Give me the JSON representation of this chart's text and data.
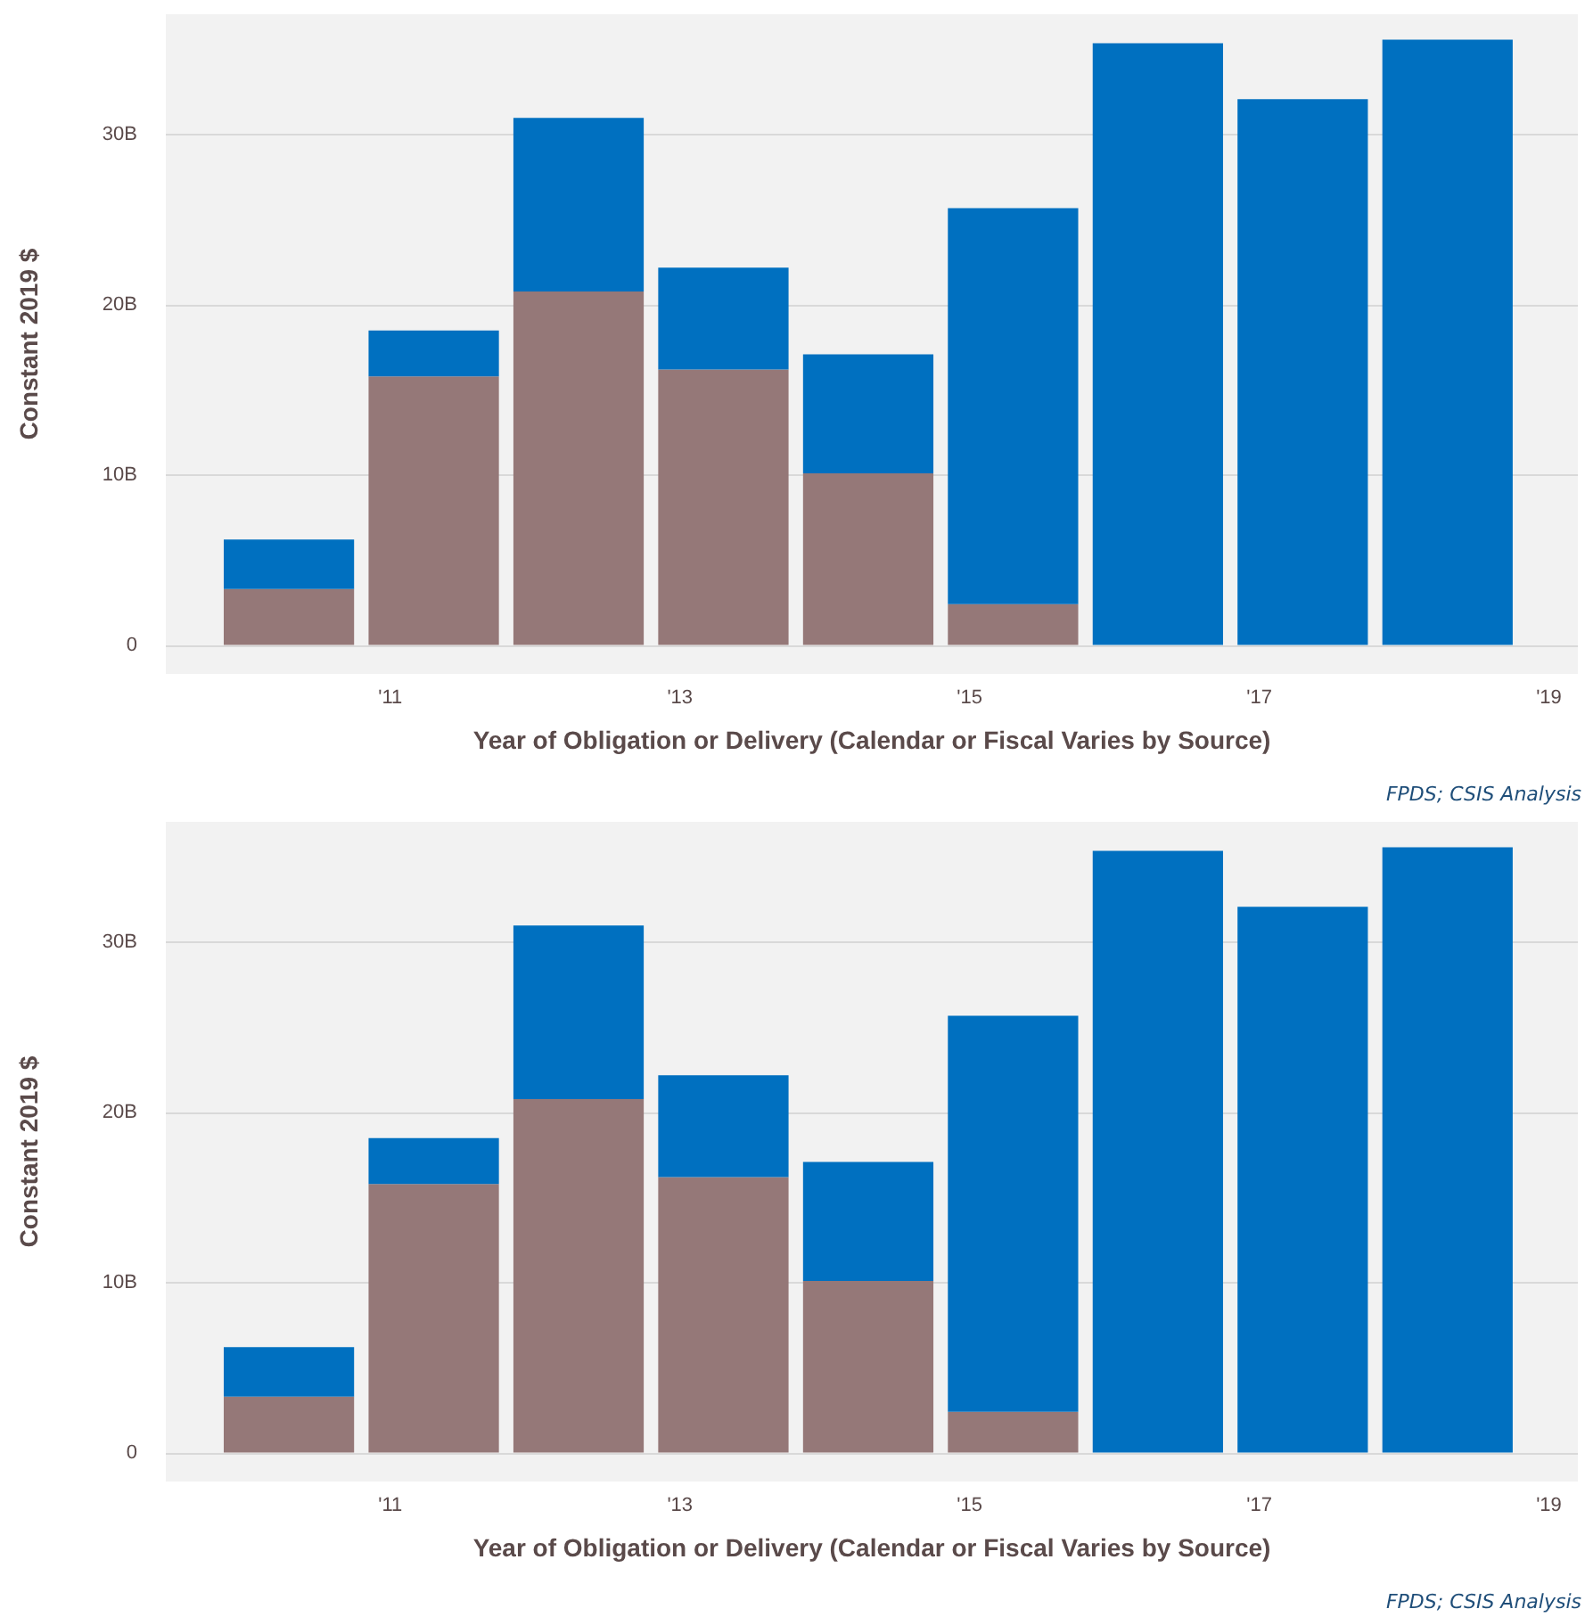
{
  "chart_data": [
    {
      "type": "bar",
      "stacked": true,
      "xlabel": "Year of Obligation or Delivery (Calendar or Fiscal Varies by Source)",
      "ylabel": "Constant 2019 $",
      "x": [
        2010.3,
        2011.3,
        2012.3,
        2013.3,
        2014.3,
        2015.3,
        2016.3,
        2017.3,
        2018.3
      ],
      "series": [
        {
          "color": "#957878",
          "values": [
            3.3,
            15.8,
            20.8,
            16.2,
            10.1,
            2.4,
            null,
            null,
            null
          ]
        },
        {
          "color": "#0070c0",
          "values": [
            2.9,
            2.7,
            10.2,
            6.0,
            7.0,
            23.3,
            35.4,
            32.1,
            35.6
          ]
        }
      ],
      "xlim": [
        2009.45,
        2019.2
      ],
      "xticks": [
        {
          "value": 2011,
          "label": "'11"
        },
        {
          "value": 2013,
          "label": "'13"
        },
        {
          "value": 2015,
          "label": "'15"
        },
        {
          "value": 2017,
          "label": "'17"
        },
        {
          "value": 2019,
          "label": "'19"
        }
      ],
      "ylim": [
        -1.7,
        37.1
      ],
      "yticks": [
        0,
        {
          "value": 10,
          "label": "10B"
        },
        {
          "value": 20,
          "label": "20B"
        },
        {
          "value": 30,
          "label": "30B"
        }
      ],
      "grid": "y",
      "annotations": [
        "FPDS; CSIS Analysis"
      ]
    },
    {
      "type": "bar",
      "stacked": true,
      "xlabel": "Year of Obligation or Delivery (Calendar or Fiscal Varies by Source)",
      "ylabel": "Constant 2019 $",
      "x": [
        2010.3,
        2011.3,
        2012.3,
        2013.3,
        2014.3,
        2015.3,
        2016.3,
        2017.3,
        2018.3
      ],
      "series": [
        {
          "color": "#957878",
          "values": [
            3.3,
            15.8,
            20.8,
            16.2,
            10.1,
            2.4,
            null,
            null,
            null
          ]
        },
        {
          "color": "#0070c0",
          "values": [
            2.9,
            2.7,
            10.2,
            6.0,
            7.0,
            23.3,
            35.4,
            32.1,
            35.6
          ]
        }
      ],
      "xlim": [
        2009.45,
        2019.2
      ],
      "xticks": [
        {
          "value": 2011,
          "label": "'11"
        },
        {
          "value": 2013,
          "label": "'13"
        },
        {
          "value": 2015,
          "label": "'15"
        },
        {
          "value": 2017,
          "label": "'17"
        },
        {
          "value": 2019,
          "label": "'19"
        }
      ],
      "ylim": [
        -1.7,
        37.1
      ],
      "yticks": [
        0,
        {
          "value": 10,
          "label": "10B"
        },
        {
          "value": 20,
          "label": "20B"
        },
        {
          "value": 30,
          "label": "30B"
        }
      ],
      "grid": "y",
      "annotations": [
        "FPDS; CSIS Analysis"
      ]
    }
  ]
}
